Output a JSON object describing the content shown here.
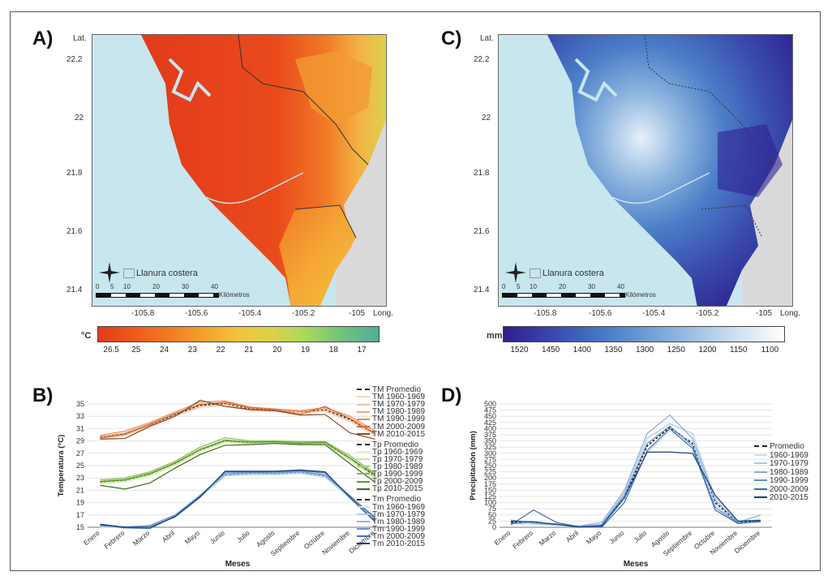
{
  "panels": {
    "a": "A)",
    "b": "B)",
    "c": "C)",
    "d": "D)"
  },
  "maps": {
    "lat_label": "Lat.",
    "long_label": "Long.",
    "lat_ticks": [
      "22.2",
      "22",
      "21.8",
      "21.6",
      "21.4"
    ],
    "long_ticks": [
      "-105.8",
      "-105.6",
      "-105.4",
      "-105.2",
      "-105"
    ],
    "legend_label": "Llanura costera",
    "scale_ticks": [
      "0",
      "5",
      "10",
      "20",
      "30",
      "40"
    ],
    "scale_unit": "Kilómetros",
    "compass_letters": [
      "N",
      "S",
      "E",
      "W"
    ],
    "colors": {
      "sea": "#c7e6ee",
      "other_land": "#d9d9d9",
      "border": "#333333"
    }
  },
  "temp_map": {
    "unit": "°C",
    "ticks": [
      "26.5",
      "25",
      "24",
      "23",
      "22",
      "21",
      "20",
      "19",
      "18",
      "17"
    ],
    "colors": [
      "#e23a1b",
      "#ec5a1d",
      "#f17a22",
      "#f5a02c",
      "#f1c43a",
      "#d9d44a",
      "#a7d65e",
      "#6fc17d",
      "#4fae9a"
    ]
  },
  "precip_map": {
    "unit": "mm",
    "ticks": [
      "1520",
      "1450",
      "1400",
      "1350",
      "1300",
      "1250",
      "1200",
      "1150",
      "1100"
    ],
    "colors": [
      "#2e1f8f",
      "#3a3aa6",
      "#3a5eb9",
      "#4b7ec8",
      "#6a9bd4",
      "#8fb6df",
      "#b6d0ea",
      "#dbe8f5",
      "#ffffff"
    ]
  },
  "chart_data": [
    {
      "type": "line",
      "xlabel": "Meses",
      "ylabel": "Temperatura (°C)",
      "ylim": [
        15,
        35
      ],
      "yticks": [
        15,
        17,
        19,
        21,
        23,
        25,
        27,
        29,
        31,
        33,
        35
      ],
      "categories": [
        "Enero",
        "Febrero",
        "Marzo",
        "Abril",
        "Mayo",
        "Junio",
        "Julio",
        "Agosto",
        "Septiembre",
        "Octubre",
        "Noviembre",
        "Diciembre"
      ],
      "grid": true,
      "legend_position": "right",
      "series": [
        {
          "name": "TM Promedio",
          "color": "#222222",
          "dashed": true,
          "values": [
            29.6,
            30.2,
            31.6,
            33.3,
            34.8,
            35.1,
            34.2,
            34.0,
            33.7,
            34.1,
            32.5,
            30.2
          ]
        },
        {
          "name": "TM 1960-1969",
          "color": "#f9d8c4",
          "values": [
            29.2,
            29.9,
            31.2,
            33.0,
            34.4,
            34.7,
            33.9,
            33.8,
            33.5,
            33.8,
            32.1,
            29.8
          ]
        },
        {
          "name": "TM 1970-1979",
          "color": "#f5c2a0",
          "values": [
            29.4,
            30.0,
            31.5,
            33.1,
            34.6,
            34.9,
            34.0,
            33.9,
            33.6,
            33.9,
            32.3,
            30.0
          ]
        },
        {
          "name": "TM 1980-1989",
          "color": "#f0a57a",
          "values": [
            29.7,
            30.3,
            31.8,
            33.5,
            35.0,
            35.2,
            34.3,
            34.1,
            33.8,
            34.2,
            32.7,
            30.3
          ]
        },
        {
          "name": "TM 1990-1999",
          "color": "#e78a55",
          "values": [
            29.9,
            30.6,
            32.0,
            33.7,
            35.3,
            35.5,
            34.5,
            34.2,
            33.9,
            34.4,
            33.0,
            30.6
          ]
        },
        {
          "name": "TM 2000-2009",
          "color": "#d06b32",
          "values": [
            29.5,
            30.1,
            31.7,
            33.4,
            34.9,
            35.3,
            34.4,
            34.1,
            33.3,
            34.6,
            32.6,
            30.2
          ]
        },
        {
          "name": "TM 2010-2015",
          "color": "#8a4a22",
          "values": [
            29.3,
            29.4,
            31.4,
            33.0,
            35.6,
            34.6,
            34.1,
            33.9,
            33.2,
            33.3,
            30.3,
            29.3
          ]
        },
        {
          "name": "Tp Promedio",
          "color": "#222222",
          "dashed": true,
          "values": [
            22.3,
            22.6,
            23.6,
            25.3,
            27.5,
            29.0,
            28.7,
            28.8,
            28.7,
            28.6,
            26.1,
            23.2
          ]
        },
        {
          "name": "Tp 1960-1969",
          "color": "#e4f0c8",
          "values": [
            22.0,
            22.3,
            23.3,
            25.0,
            27.2,
            28.7,
            28.5,
            28.6,
            28.5,
            28.4,
            25.8,
            23.0
          ]
        },
        {
          "name": "Tp 1970-1979",
          "color": "#cbe3a0",
          "values": [
            22.2,
            22.5,
            23.5,
            25.2,
            27.4,
            28.9,
            28.6,
            28.7,
            28.6,
            28.5,
            26.0,
            23.1
          ]
        },
        {
          "name": "Tp 1980-1989",
          "color": "#a8d274",
          "values": [
            22.5,
            22.8,
            23.8,
            25.5,
            27.7,
            29.2,
            28.8,
            28.9,
            28.8,
            28.7,
            26.3,
            23.4
          ]
        },
        {
          "name": "Tp 1990-1999",
          "color": "#84bd4c",
          "values": [
            22.7,
            23.0,
            24.0,
            25.7,
            28.0,
            29.5,
            29.0,
            29.0,
            28.9,
            28.9,
            26.6,
            23.7
          ]
        },
        {
          "name": "Tp 2000-2009",
          "color": "#5a9a32",
          "values": [
            22.4,
            22.7,
            23.7,
            25.4,
            27.6,
            29.1,
            28.8,
            28.9,
            28.6,
            28.8,
            26.2,
            23.5
          ]
        },
        {
          "name": "Tp 2010-2015",
          "color": "#3d6b22",
          "values": [
            21.8,
            21.2,
            22.2,
            24.6,
            26.8,
            28.3,
            28.4,
            28.6,
            28.4,
            28.4,
            25.3,
            22.3
          ]
        },
        {
          "name": "Tm Promedio",
          "color": "#222222",
          "dashed": true,
          "values": [
            15.2,
            15.0,
            15.1,
            16.8,
            20.0,
            23.5,
            23.7,
            23.7,
            23.9,
            23.3,
            19.9,
            16.2
          ]
        },
        {
          "name": "Tm 1960-1969",
          "color": "#d2e2f2",
          "values": [
            15.0,
            14.9,
            15.0,
            16.6,
            19.8,
            23.3,
            23.5,
            23.5,
            23.7,
            23.1,
            19.6,
            16.0
          ]
        },
        {
          "name": "Tm 1970-1979",
          "color": "#b4cde8",
          "values": [
            15.1,
            15.0,
            15.1,
            16.7,
            19.9,
            23.4,
            23.6,
            23.6,
            23.8,
            23.2,
            19.8,
            16.1
          ]
        },
        {
          "name": "Tm 1980-1989",
          "color": "#8fb2da",
          "values": [
            15.2,
            15.1,
            15.2,
            16.9,
            20.1,
            23.6,
            23.8,
            23.8,
            24.0,
            23.4,
            20.0,
            16.3
          ]
        },
        {
          "name": "Tm 1990-1999",
          "color": "#6a95cb",
          "values": [
            15.3,
            15.0,
            15.3,
            17.0,
            20.2,
            23.8,
            23.9,
            23.8,
            24.1,
            23.5,
            20.1,
            16.4
          ]
        },
        {
          "name": "Tm 2000-2009",
          "color": "#4274b5",
          "values": [
            15.4,
            14.9,
            14.8,
            16.8,
            20.0,
            24.0,
            24.0,
            24.0,
            24.2,
            23.8,
            20.0,
            16.6
          ]
        },
        {
          "name": "Tm 2010-2015",
          "color": "#1f3f7a",
          "values": [
            15.5,
            15.0,
            15.0,
            16.7,
            19.9,
            24.1,
            24.1,
            24.1,
            24.3,
            24.0,
            19.8,
            15.9
          ]
        }
      ],
      "legend_groups": [
        [
          "TM Promedio",
          "TM 1960-1969",
          "TM 1970-1979",
          "TM 1980-1989",
          "TM 1990-1999",
          "TM 2000-2009",
          "TM 2010-2015"
        ],
        [
          "Tp Promedio",
          "Tp 1960-1969",
          "Tp 1970-1979",
          "Tp 1980-1989",
          "Tp 1990-1999",
          "Tp 2000-2009",
          "Tp 2010-2015"
        ],
        [
          "Tm Promedio",
          "Tm 1960-1969",
          "Tm 1970-1979",
          "Tm 1980-1989",
          "Tm 1990-1999",
          "Tm 2000-2009",
          "Tm 2010-2015"
        ]
      ]
    },
    {
      "type": "line",
      "xlabel": "Meses",
      "ylabel": "Precipitación (mm)",
      "ylim": [
        0,
        500
      ],
      "yticks": [
        0,
        25,
        50,
        75,
        100,
        125,
        150,
        175,
        200,
        225,
        250,
        275,
        300,
        325,
        350,
        375,
        400,
        425,
        450,
        475,
        500
      ],
      "categories": [
        "Enero",
        "Febrero",
        "Marzo",
        "Abril",
        "Mayo",
        "Junio",
        "Julio",
        "Agosto",
        "Septiembre",
        "Octubre",
        "Noviembre",
        "Diciembre"
      ],
      "grid": true,
      "legend_position": "right",
      "series": [
        {
          "name": "Promedio",
          "color": "#222222",
          "dashed": true,
          "values": [
            20,
            22,
            10,
            2,
            8,
            120,
            330,
            405,
            340,
            100,
            20,
            25
          ]
        },
        {
          "name": "1960-1969",
          "color": "#c9dcf0",
          "values": [
            15,
            10,
            8,
            2,
            5,
            110,
            300,
            390,
            350,
            90,
            15,
            20
          ]
        },
        {
          "name": "1970-1979",
          "color": "#a9c6e6",
          "values": [
            25,
            20,
            15,
            3,
            12,
            140,
            360,
            420,
            380,
            120,
            25,
            30
          ]
        },
        {
          "name": "1980-1989",
          "color": "#86add8",
          "values": [
            30,
            15,
            10,
            5,
            20,
            150,
            380,
            455,
            360,
            110,
            20,
            50
          ]
        },
        {
          "name": "1990-1999",
          "color": "#5f8fc6",
          "values": [
            15,
            20,
            12,
            2,
            10,
            130,
            340,
            410,
            330,
            80,
            18,
            22
          ]
        },
        {
          "name": "2000-2009",
          "color": "#3a6fb0",
          "values": [
            10,
            70,
            20,
            2,
            0,
            100,
            310,
            400,
            320,
            70,
            15,
            25
          ]
        },
        {
          "name": "2010-2015",
          "color": "#1f3f7a",
          "values": [
            25,
            22,
            12,
            1,
            5,
            120,
            305,
            305,
            300,
            130,
            25,
            28
          ]
        }
      ]
    }
  ]
}
